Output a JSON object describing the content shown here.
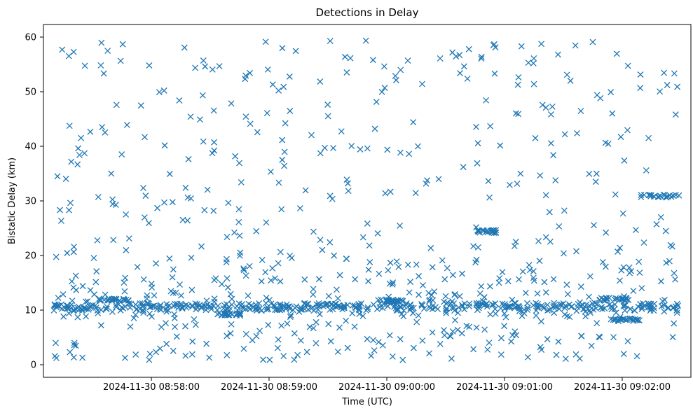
{
  "chart_data": {
    "type": "scatter",
    "title": "Detections in Delay",
    "xlabel": "Time (UTC)",
    "ylabel": "Bistatic Delay (km)",
    "marker": "x",
    "color": "#1f77b4",
    "grid": false,
    "x_ticks": [
      "2024-11-30 08:58:00",
      "2024-11-30 08:59:00",
      "2024-11-30 09:00:00",
      "2024-11-30 09:01:00",
      "2024-11-30 09:02:00"
    ],
    "y_ticks": [
      "0",
      "10",
      "20",
      "30",
      "40",
      "50",
      "60"
    ],
    "x_range": [
      "2024-11-30 08:57:08",
      "2024-11-30 09:02:25"
    ],
    "ylim": [
      -2.3,
      62.8
    ],
    "series": [
      {
        "x_start": "2024-11-30 08:57:13",
        "x_end": "2024-11-30 09:02:20",
        "y_min": 0.8,
        "y_max": 59.9,
        "approx_point_count": 1200,
        "clusters": [
          {
            "description": "dense horizontal band",
            "y": 10.7,
            "from": "2024-11-30 08:57:13",
            "to": "2024-11-30 09:02:20"
          },
          {
            "description": "band",
            "y": 12.0,
            "from": "2024-11-30 08:57:35",
            "to": "2024-11-30 08:57:50"
          },
          {
            "description": "band",
            "y": 9.3,
            "from": "2024-11-30 08:58:35",
            "to": "2024-11-30 08:58:45"
          },
          {
            "description": "band",
            "y": 11.8,
            "from": "2024-11-30 08:59:55",
            "to": "2024-11-30 09:00:05"
          },
          {
            "description": "band",
            "y": 12.1,
            "from": "2024-11-30 09:01:40",
            "to": "2024-11-30 09:01:55"
          },
          {
            "description": "band",
            "y": 8.3,
            "from": "2024-11-30 09:01:45",
            "to": "2024-11-30 09:02:00"
          },
          {
            "description": "band",
            "y": 31.2,
            "from": "2024-11-30 09:02:00",
            "to": "2024-11-30 09:02:20"
          },
          {
            "description": "band",
            "y": 24.6,
            "from": "2024-11-30 09:00:40",
            "to": "2024-11-30 09:00:50"
          }
        ]
      }
    ]
  }
}
